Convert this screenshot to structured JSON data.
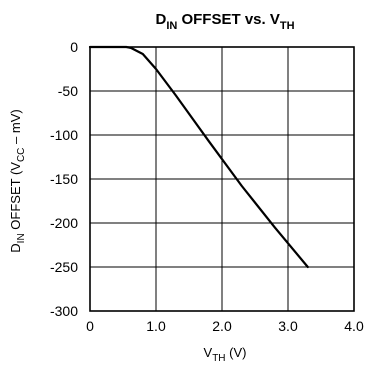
{
  "chart_data": {
    "type": "line",
    "title": {
      "main": "D",
      "sub1": "IN",
      "mid": " OFFSET vs. V",
      "sub2": "TH"
    },
    "xlabel": {
      "main": "V",
      "sub": "TH",
      "tail": " (V)"
    },
    "ylabel": {
      "main": "D",
      "sub1": "IN",
      "mid": " OFFSET (V",
      "sub2": "CC",
      "tail": " – mV)"
    },
    "xlim": [
      0,
      4
    ],
    "ylim": [
      -300,
      0
    ],
    "x_ticks": [
      0,
      1,
      2,
      3,
      4
    ],
    "x_tick_labels": [
      "0",
      "1.0",
      "2.0",
      "3.0",
      "4.0"
    ],
    "y_ticks": [
      0,
      -50,
      -100,
      -150,
      -200,
      -250,
      -300
    ],
    "y_tick_labels": [
      "0",
      "-50",
      "-100",
      "-150",
      "-200",
      "-250",
      "-300"
    ],
    "grid": true,
    "line_color": "#000000",
    "series": [
      {
        "x": [
          0.0,
          0.3,
          0.55,
          0.62,
          0.8,
          1.0,
          1.3,
          1.8,
          2.3,
          2.8,
          3.3
        ],
        "y": [
          0,
          0,
          0,
          -1,
          -8,
          -25,
          -55,
          -107,
          -158,
          -205,
          -250
        ]
      }
    ]
  }
}
